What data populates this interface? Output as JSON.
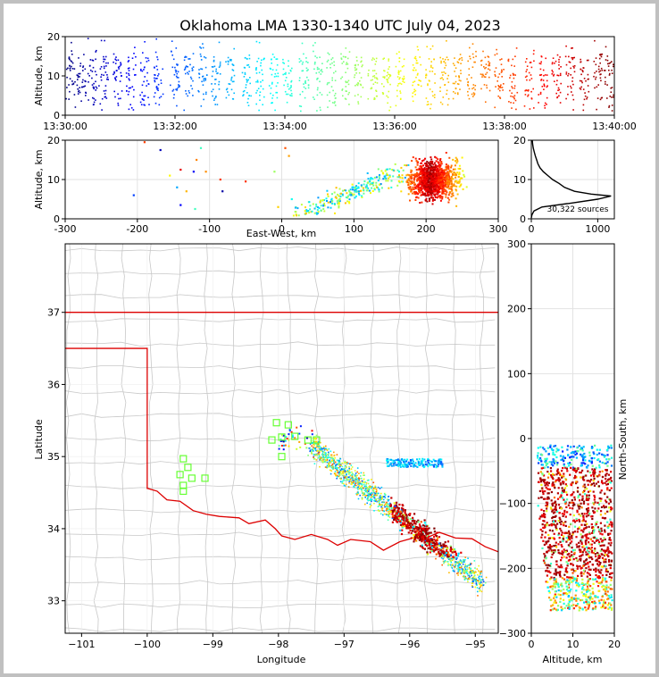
{
  "title": "Oklahoma LMA 1330-1340 UTC July 04, 2023",
  "source_count_label": "30,322 sources",
  "chart_data": [
    {
      "id": "time-height",
      "type": "scatter",
      "xlabel": "",
      "ylabel": "Altitude, km",
      "x_ticks": [
        "13:30:00",
        "13:32:00",
        "13:34:00",
        "13:36:00",
        "13:38:00",
        "13:40:00"
      ],
      "x_range_minutes": [
        0,
        10
      ],
      "ylim": [
        0,
        20
      ],
      "y_ticks": [
        0,
        10,
        20
      ],
      "color_scale": "time, blue to dark red",
      "bursts_minutes": [
        0.1,
        0.3,
        0.5,
        0.7,
        0.95,
        1.2,
        1.45,
        1.7,
        2.0,
        2.25,
        2.5,
        2.75,
        3.0,
        3.3,
        3.55,
        3.8,
        4.05,
        4.35,
        4.6,
        4.85,
        5.1,
        5.35,
        5.6,
        5.85,
        6.1,
        6.4,
        6.65,
        6.9,
        7.15,
        7.4,
        7.65,
        7.9,
        8.15,
        8.45,
        8.7,
        8.95,
        9.2,
        9.45,
        9.7,
        9.9
      ]
    },
    {
      "id": "ew-altitude",
      "type": "scatter",
      "xlabel": "East-West, km",
      "ylabel": "Altitude, km",
      "xlim": [
        -300,
        300
      ],
      "x_ticks": [
        -300,
        -200,
        -100,
        0,
        100,
        200,
        300
      ],
      "ylim": [
        0,
        20
      ],
      "y_ticks": [
        0,
        10,
        20
      ]
    },
    {
      "id": "altitude-histogram",
      "type": "line",
      "xlabel": "",
      "ylabel": "",
      "xlim": [
        0,
        1250
      ],
      "x_ticks": [
        0,
        1000
      ],
      "ylim": [
        0,
        20
      ],
      "y_ticks": [
        0,
        10,
        20
      ],
      "profile": [
        [
          0,
          0.2
        ],
        [
          10,
          1
        ],
        [
          40,
          2
        ],
        [
          160,
          3
        ],
        [
          600,
          4
        ],
        [
          1000,
          5
        ],
        [
          1200,
          5.8
        ],
        [
          900,
          6.3
        ],
        [
          650,
          7
        ],
        [
          500,
          8
        ],
        [
          420,
          9
        ],
        [
          320,
          10
        ],
        [
          250,
          11
        ],
        [
          180,
          12
        ],
        [
          130,
          13
        ],
        [
          100,
          14
        ],
        [
          80,
          15
        ],
        [
          60,
          16
        ],
        [
          45,
          17
        ],
        [
          30,
          18
        ],
        [
          20,
          19
        ],
        [
          15,
          20
        ]
      ]
    },
    {
      "id": "plan-view",
      "type": "scatter",
      "xlabel": "Longitude",
      "ylabel": "Latitude",
      "xlim": [
        -101.25,
        -94.65
      ],
      "ylim": [
        32.55,
        37.95
      ],
      "x_ticks": [
        -101,
        -100,
        -99,
        -98,
        -97,
        -96,
        -95
      ],
      "y_ticks": [
        33,
        34,
        35,
        36,
        37
      ],
      "border_color": "#dd0000",
      "station_color": "#66ff33",
      "stations": [
        [
          -99.45,
          34.97
        ],
        [
          -99.38,
          34.85
        ],
        [
          -99.5,
          34.75
        ],
        [
          -99.45,
          34.6
        ],
        [
          -99.32,
          34.7
        ],
        [
          -99.12,
          34.7
        ],
        [
          -99.45,
          34.52
        ],
        [
          -98.03,
          35.47
        ],
        [
          -97.85,
          35.44
        ],
        [
          -97.95,
          35.27
        ],
        [
          -98.1,
          35.23
        ],
        [
          -97.75,
          35.28
        ],
        [
          -97.55,
          35.23
        ],
        [
          -97.42,
          35.23
        ],
        [
          -97.95,
          35.0
        ]
      ]
    },
    {
      "id": "altitude-ns",
      "type": "scatter",
      "xlabel": "Altitude, km",
      "ylabel": "North-South, km",
      "xlim": [
        0,
        20
      ],
      "x_ticks": [
        0,
        10,
        20
      ],
      "ylim": [
        -300,
        300
      ],
      "y_ticks": [
        -300,
        -200,
        -100,
        0,
        100,
        200,
        300
      ]
    }
  ]
}
